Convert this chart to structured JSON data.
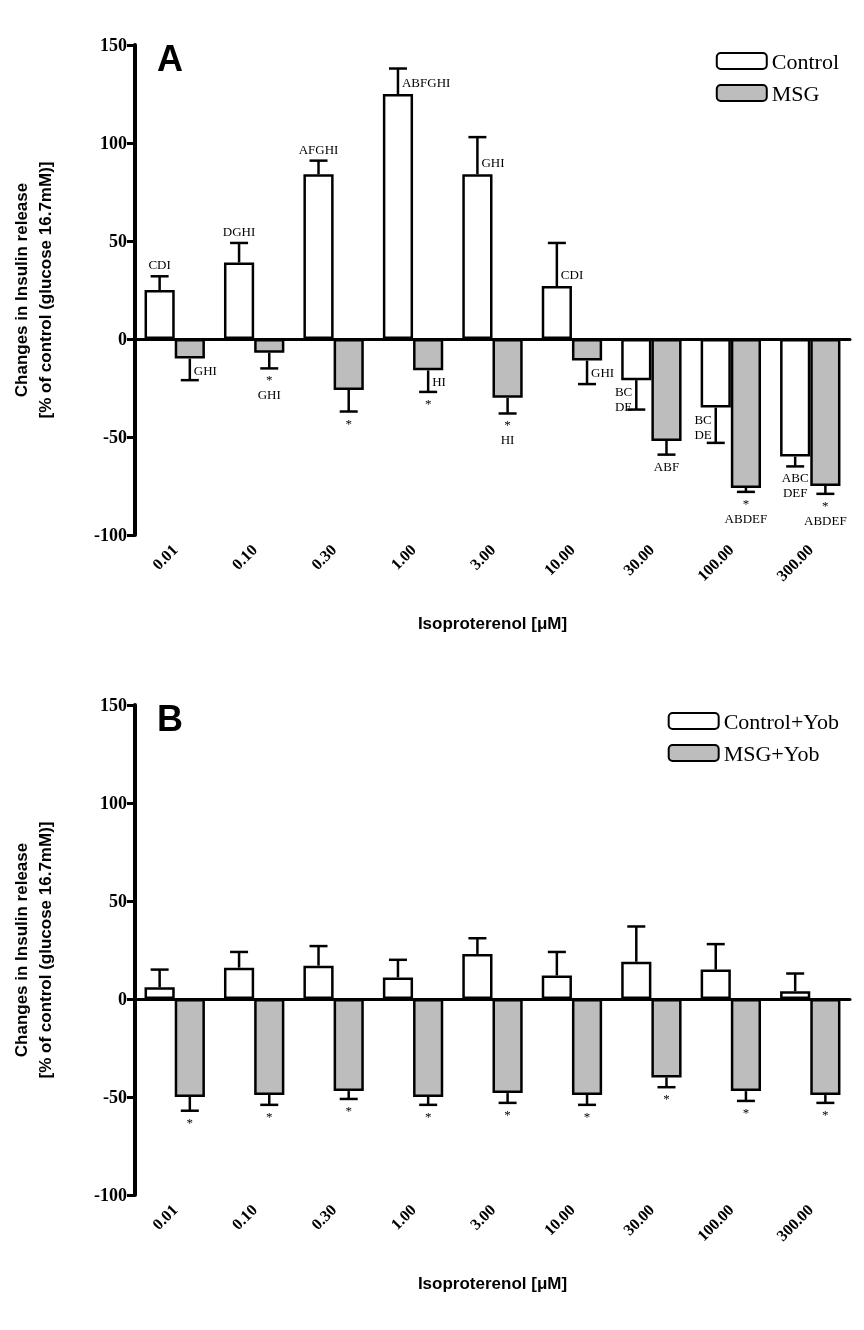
{
  "chart_data": [
    {
      "type": "bar",
      "categories": [
        "0.01",
        "0.10",
        "0.30",
        "1.00",
        "3.00",
        "10.00",
        "30.00",
        "100.00",
        "300.00"
      ],
      "xlabel": "Isoproterenol [μM]",
      "ylabel": "Changes in Insulin release\n[% of control (glucose 16.7mM)]",
      "series": [
        {
          "name": "Control",
          "color": "#ffffff",
          "values": [
            25,
            39,
            84,
            125,
            84,
            27,
            -21,
            -35,
            -60
          ],
          "errors": [
            [
              25,
              32
            ],
            [
              39,
              49
            ],
            [
              84,
              91
            ],
            [
              125,
              138
            ],
            [
              84,
              103
            ],
            [
              27,
              49
            ],
            [
              -36,
              -21
            ],
            [
              -53,
              -35
            ],
            [
              -65,
              -60
            ]
          ]
        },
        {
          "name": "MSG",
          "color": "#bdbdbd",
          "values": [
            -10,
            -7,
            -26,
            -16,
            -30,
            -11,
            -52,
            -76,
            -75
          ],
          "errors": [
            [
              -21,
              -10
            ],
            [
              -15,
              -7
            ],
            [
              -37,
              -26
            ],
            [
              -27,
              -16
            ],
            [
              -38,
              -30
            ],
            [
              -23,
              -11
            ],
            [
              -59,
              -52
            ],
            [
              -78,
              -76
            ],
            [
              -79,
              -75
            ]
          ]
        }
      ],
      "ylim": [
        -100,
        150
      ],
      "yticks": [
        -100,
        -50,
        0,
        50,
        100,
        150
      ],
      "legend": "top right",
      "annotations": [
        "A",
        {
          "text": "CDI",
          "x": "0.01",
          "y": 25
        },
        {
          "text": "DGHI",
          "x": "0.10",
          "y": 39
        },
        {
          "text": "AFGHI",
          "x": "0.30",
          "y": 84
        },
        {
          "text": "ABFGHI",
          "x": "1.00",
          "y": 125
        },
        {
          "text": "GHI",
          "x": "3.00",
          "y": 84
        },
        {
          "text": "CDI",
          "x": "10.00",
          "y": 27
        },
        {
          "text": "GHI",
          "x": "0.01",
          "y": -10
        },
        {
          "text": "*",
          "x": "0.10",
          "y": -7
        },
        {
          "text": "GHI",
          "x": "0.10",
          "y": -7
        },
        {
          "text": "*",
          "x": "0.30",
          "y": -26
        },
        {
          "text": "*",
          "x": "1.00",
          "y": -16
        },
        {
          "text": "HI",
          "x": "1.00",
          "y": -16
        },
        {
          "text": "*",
          "x": "3.00",
          "y": -30
        },
        {
          "text": "HI",
          "x": "3.00",
          "y": -30
        },
        {
          "text": "GHI",
          "x": "10.00",
          "y": -11
        },
        {
          "text": "BC\nDE",
          "x": "30.00",
          "y": -21
        },
        {
          "text": "ABF",
          "x": "30.00",
          "y": -52
        },
        {
          "text": "BC\nDE",
          "x": "100.00",
          "y": -35
        },
        {
          "text": "*",
          "x": "100.00",
          "y": -76
        },
        {
          "text": "ABDEF",
          "x": "100.00",
          "y": -76
        },
        {
          "text": "ABC\nDEF",
          "x": "300.00",
          "y": -60
        },
        {
          "text": "*",
          "x": "300.00",
          "y": -75
        },
        {
          "text": "ABDEF",
          "x": "300.00",
          "y": -75
        }
      ]
    },
    {
      "type": "bar",
      "categories": [
        "0.01",
        "0.10",
        "0.30",
        "1.00",
        "3.00",
        "10.00",
        "30.00",
        "100.00",
        "300.00"
      ],
      "xlabel": "Isoproterenol [μM]",
      "ylabel": "Changes in Insulin release\n[% of control (glucose 16.7mM)]",
      "series": [
        {
          "name": "Control+Yob",
          "color": "#ffffff",
          "values": [
            6,
            16,
            17,
            11,
            23,
            12,
            19,
            15,
            4
          ],
          "errors": [
            [
              6,
              15
            ],
            [
              16,
              24
            ],
            [
              17,
              27
            ],
            [
              11,
              20
            ],
            [
              23,
              31
            ],
            [
              12,
              24
            ],
            [
              19,
              37
            ],
            [
              15,
              28
            ],
            [
              4,
              13
            ]
          ]
        },
        {
          "name": "MSG+Yob",
          "color": "#bdbdbd",
          "values": [
            -50,
            -49,
            -47,
            -50,
            -48,
            -49,
            -40,
            -47,
            -49
          ],
          "errors": [
            [
              -57,
              -50
            ],
            [
              -54,
              -49
            ],
            [
              -51,
              -47
            ],
            [
              -54,
              -50
            ],
            [
              -53,
              -48
            ],
            [
              -54,
              -49
            ],
            [
              -45,
              -40
            ],
            [
              -52,
              -47
            ],
            [
              -53,
              -49
            ]
          ]
        }
      ],
      "ylim": [
        -100,
        150
      ],
      "yticks": [
        -100,
        -50,
        0,
        50,
        100,
        150
      ],
      "legend": "top right",
      "annotations": [
        "B",
        {
          "text": "*",
          "x": "0.01",
          "y": -50
        },
        {
          "text": "*",
          "x": "0.10",
          "y": -49
        },
        {
          "text": "*",
          "x": "0.30",
          "y": -47
        },
        {
          "text": "*",
          "x": "1.00",
          "y": -50
        },
        {
          "text": "*",
          "x": "3.00",
          "y": -48
        },
        {
          "text": "*",
          "x": "10.00",
          "y": -49
        },
        {
          "text": "*",
          "x": "30.00",
          "y": -40
        },
        {
          "text": "*",
          "x": "100.00",
          "y": -47
        },
        {
          "text": "*",
          "x": "300.00",
          "y": -49
        }
      ]
    }
  ]
}
